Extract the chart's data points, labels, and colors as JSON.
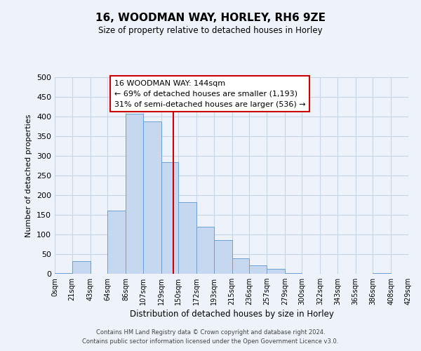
{
  "title": "16, WOODMAN WAY, HORLEY, RH6 9ZE",
  "subtitle": "Size of property relative to detached houses in Horley",
  "xlabel": "Distribution of detached houses by size in Horley",
  "ylabel": "Number of detached properties",
  "bin_edges": [
    0,
    21,
    43,
    64,
    86,
    107,
    129,
    150,
    172,
    193,
    215,
    236,
    257,
    279,
    300,
    322,
    343,
    365,
    386,
    408,
    429
  ],
  "bin_labels": [
    "0sqm",
    "21sqm",
    "43sqm",
    "64sqm",
    "86sqm",
    "107sqm",
    "129sqm",
    "150sqm",
    "172sqm",
    "193sqm",
    "215sqm",
    "236sqm",
    "257sqm",
    "279sqm",
    "300sqm",
    "322sqm",
    "343sqm",
    "365sqm",
    "386sqm",
    "408sqm",
    "429sqm"
  ],
  "counts": [
    2,
    33,
    0,
    160,
    407,
    388,
    284,
    183,
    120,
    85,
    40,
    22,
    12,
    2,
    0,
    0,
    0,
    0,
    2,
    0
  ],
  "bar_color": "#c5d8f0",
  "bar_edge_color": "#6ca0d4",
  "property_value": 144,
  "vline_color": "#cc0000",
  "annotation_line1": "16 WOODMAN WAY: 144sqm",
  "annotation_line2": "← 69% of detached houses are smaller (1,193)",
  "annotation_line3": "31% of semi-detached houses are larger (536) →",
  "annotation_box_color": "#ffffff",
  "annotation_box_edge_color": "#cc0000",
  "ylim": [
    0,
    500
  ],
  "yticks": [
    0,
    50,
    100,
    150,
    200,
    250,
    300,
    350,
    400,
    450,
    500
  ],
  "footer_line1": "Contains HM Land Registry data © Crown copyright and database right 2024.",
  "footer_line2": "Contains public sector information licensed under the Open Government Licence v3.0.",
  "background_color": "#eef3fb",
  "grid_color": "#c8d4e8"
}
